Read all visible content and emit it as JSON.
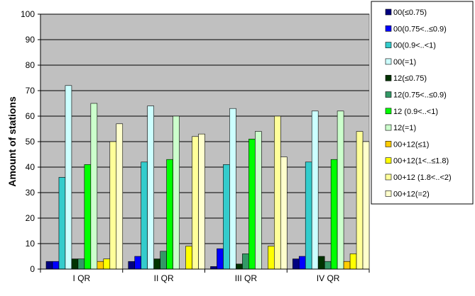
{
  "chart_data": {
    "type": "bar",
    "title": "",
    "xlabel": "",
    "ylabel": "Amount of stations",
    "ylim": [
      0,
      100
    ],
    "yticks": [
      0,
      10,
      20,
      30,
      40,
      50,
      60,
      70,
      80,
      90,
      100
    ],
    "grid": true,
    "legend_position": "right",
    "plot_background": "#c0c0c0",
    "categories": [
      "I QR",
      "II QR",
      "III QR",
      "IV QR"
    ],
    "series": [
      {
        "name": "00(≤0.75)",
        "color": "#000080",
        "values": [
          3,
          3,
          1,
          4
        ]
      },
      {
        "name": "00(0.75<..≤0.9)",
        "color": "#0000ff",
        "values": [
          3,
          5,
          8,
          5
        ]
      },
      {
        "name": "00(0.9<..<1)",
        "color": "#33cccc",
        "values": [
          36,
          42,
          41,
          42
        ]
      },
      {
        "name": "00(=1)",
        "color": "#ccffff",
        "values": [
          72,
          64,
          63,
          62
        ]
      },
      {
        "name": "12(≤0.75)",
        "color": "#003300",
        "values": [
          4,
          4,
          2,
          5
        ]
      },
      {
        "name": "12(0.75<..≤0.9)",
        "color": "#339966",
        "values": [
          4,
          7,
          6,
          3
        ]
      },
      {
        "name": "12 (0.9<..<1)",
        "color": "#00ff00",
        "values": [
          41,
          43,
          51,
          43
        ]
      },
      {
        "name": "12(=1)",
        "color": "#ccffcc",
        "values": [
          65,
          60,
          54,
          62
        ]
      },
      {
        "name": "00+12(≤1)",
        "color": "#ffcc00",
        "values": [
          3,
          0,
          0,
          3
        ]
      },
      {
        "name": "00+12(1<..≤1.8)",
        "color": "#ffff00",
        "values": [
          4,
          9,
          9,
          6
        ]
      },
      {
        "name": "00+12 (1.8<..<2)",
        "color": "#ffff99",
        "values": [
          50,
          52,
          60,
          54
        ]
      },
      {
        "name": "00+12(=2)",
        "color": "#ffffcc",
        "values": [
          57,
          53,
          44,
          50
        ]
      }
    ]
  }
}
